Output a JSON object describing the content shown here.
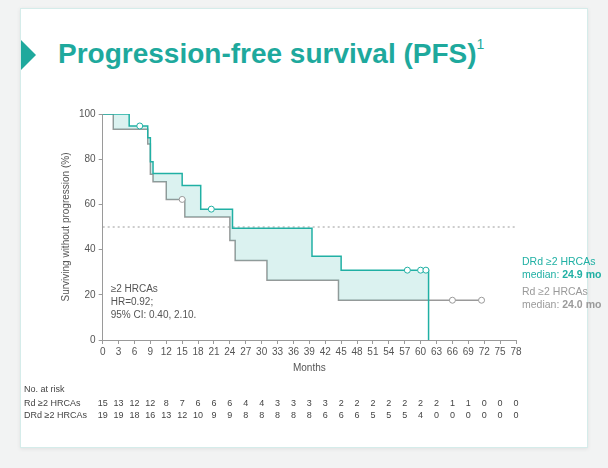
{
  "chart_data": {
    "type": "line",
    "title": "Progression-free survival (PFS)",
    "title_note": "1",
    "x_label": "Months",
    "y_label": "Surviving without progression (%)",
    "xlim": [
      0,
      78
    ],
    "xticks": [
      0,
      3,
      6,
      9,
      12,
      15,
      18,
      21,
      24,
      27,
      30,
      33,
      36,
      39,
      42,
      45,
      48,
      51,
      54,
      57,
      60,
      63,
      66,
      69,
      72,
      75,
      78
    ],
    "ylim": [
      0,
      100
    ],
    "yticks": [
      0,
      20,
      40,
      60,
      80,
      100
    ],
    "grid": false,
    "line_style": "step",
    "reference_line": {
      "y": 50,
      "line_style": "dotted"
    },
    "annotation": [
      "≥2 HRCAs",
      "HR=0.92;",
      "95% CI: 0.40, 2.10."
    ],
    "series": [
      {
        "name": "DRd ≥2 HRCAs",
        "color": "#20b0a4",
        "median_label": "median: 24.9 mo",
        "x": [
          0,
          5,
          8.5,
          9,
          9.5,
          15,
          18.5,
          24.5,
          39.5,
          45,
          61.5
        ],
        "values": [
          100,
          94.7,
          89.5,
          78.9,
          73.7,
          68.4,
          57.9,
          49.5,
          37.1,
          30.9,
          0
        ],
        "marker": "circle",
        "censored": {
          "x": [
            7,
            20.5,
            57.5,
            60,
            61
          ],
          "values": [
            94.7,
            57.9,
            30.9,
            30.9,
            30.9
          ]
        }
      },
      {
        "name": "Rd ≥2 HRCAs",
        "color": "#9a9a9a",
        "median_label": "median: 24.0 mo",
        "x": [
          0,
          2,
          8.5,
          9,
          9.5,
          12,
          15.5,
          24,
          25,
          31,
          44.5,
          72
        ],
        "values": [
          100,
          93.3,
          86.7,
          73.3,
          70,
          62.2,
          54.4,
          44,
          35.2,
          26.4,
          17.6,
          17.6
        ],
        "marker": "circle",
        "censored": {
          "x": [
            15,
            66,
            71.5
          ],
          "values": [
            62.2,
            17.6,
            17.6
          ]
        }
      }
    ],
    "risk_table": {
      "title": "No. at risk",
      "rows": [
        {
          "name": "Rd ≥2 HRCAs",
          "values": [
            15,
            13,
            12,
            12,
            8,
            7,
            6,
            6,
            6,
            4,
            4,
            3,
            3,
            3,
            3,
            2,
            2,
            2,
            2,
            2,
            2,
            2,
            1,
            1,
            0,
            0,
            0
          ]
        },
        {
          "name": "DRd ≥2 HRCAs",
          "values": [
            19,
            19,
            18,
            16,
            13,
            12,
            10,
            9,
            9,
            8,
            8,
            8,
            8,
            8,
            6,
            6,
            6,
            5,
            5,
            5,
            4,
            0,
            0,
            0,
            0,
            0,
            0
          ]
        }
      ]
    }
  }
}
